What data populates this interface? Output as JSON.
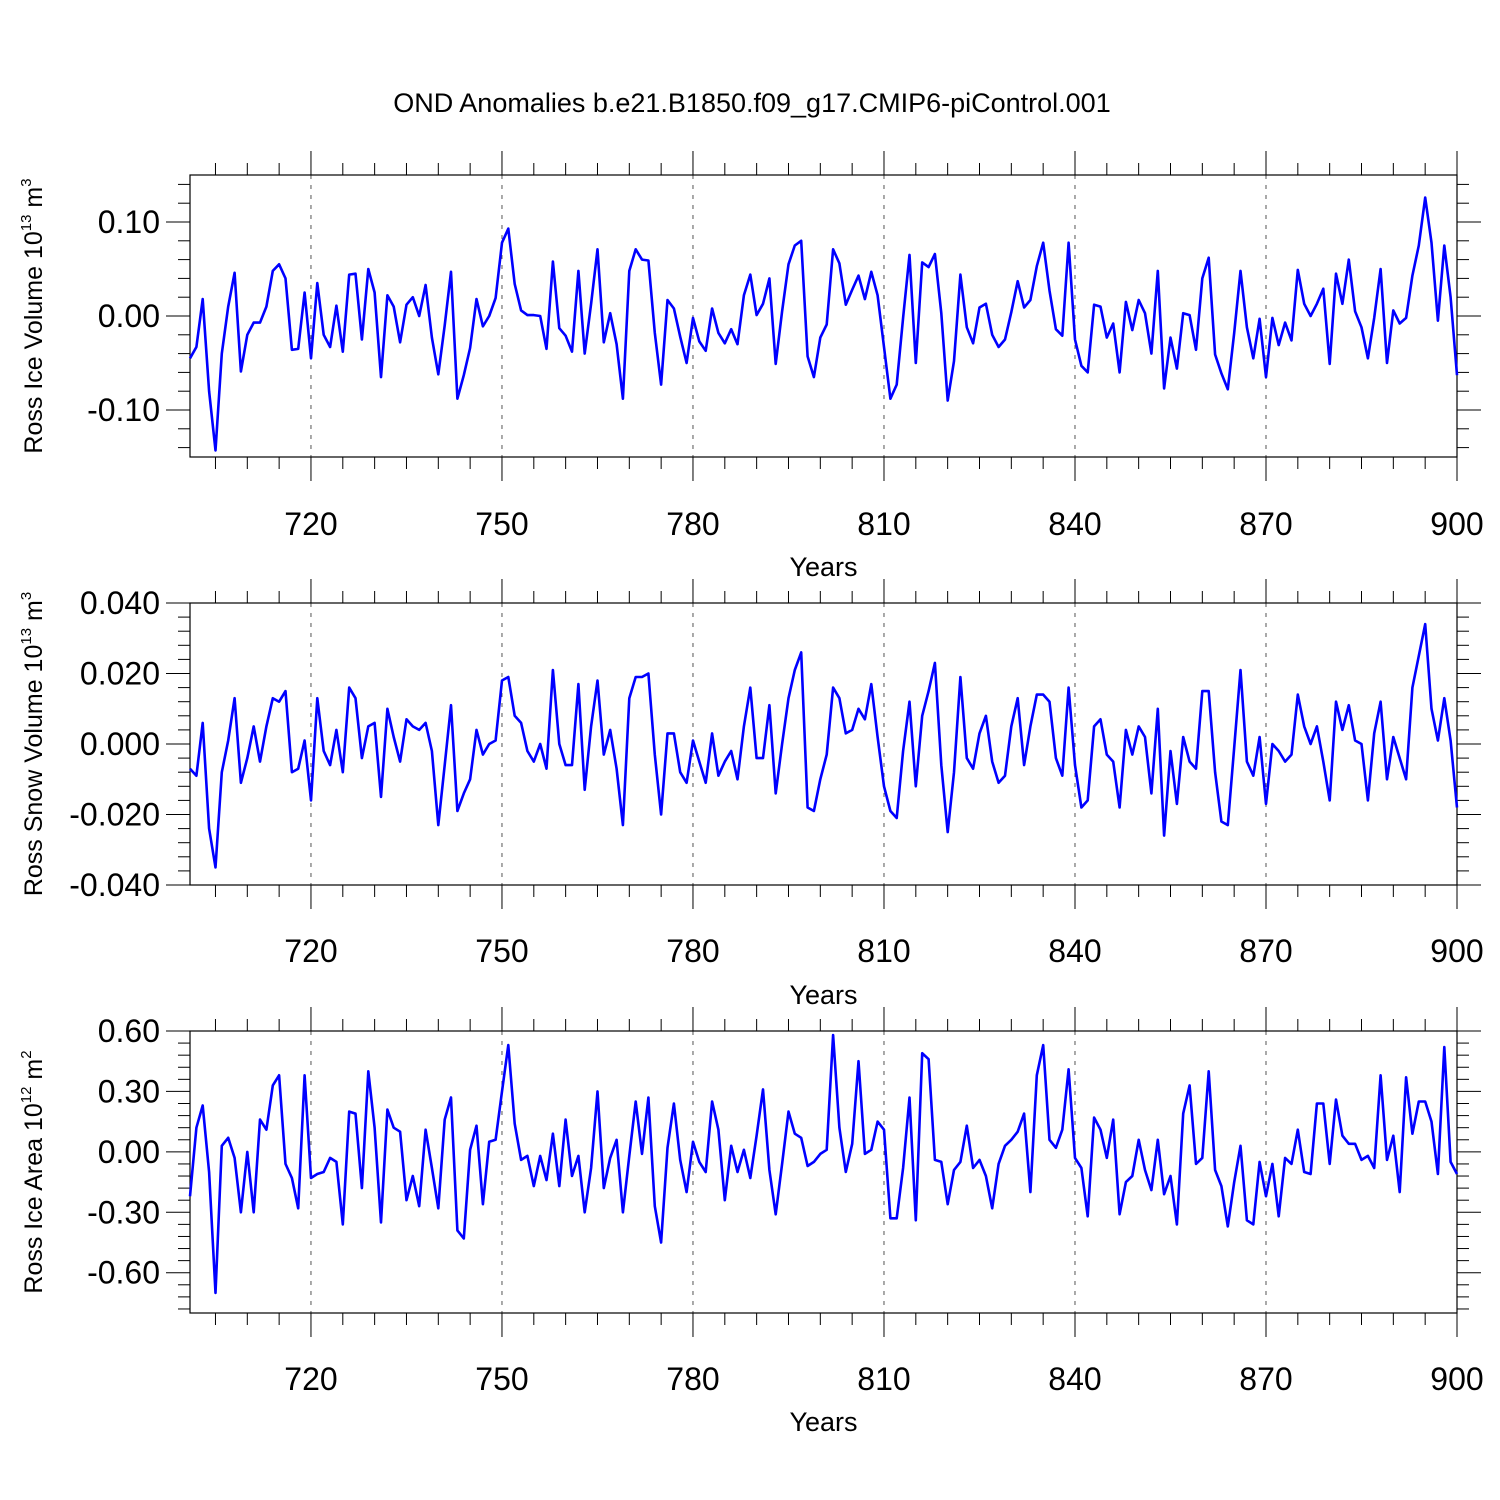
{
  "figure": {
    "title": "OND Anomalies b.e21.B1850.f09_g17.CMIP6-piControl.001"
  },
  "chart_data": [
    {
      "type": "line",
      "xlabel": "Years",
      "ylabel": {
        "main": "Ross Ice Volume 10",
        "sup": "13",
        "unit": " m",
        "unit_sup": "3"
      },
      "xlim": [
        701,
        900
      ],
      "ylim": [
        -0.15,
        0.15
      ],
      "xticks": [
        720,
        750,
        780,
        810,
        840,
        870,
        900
      ],
      "xtick_labels": [
        "720",
        "750",
        "780",
        "810",
        "840",
        "870",
        "900"
      ],
      "yticks": [
        0.1,
        0.0,
        -0.1
      ],
      "ytick_labels": [
        "0.10",
        "0.00",
        "-0.10"
      ],
      "grid": "vertical dashed at major x ticks",
      "line_color": "#0000ff",
      "x_start": 701,
      "values": [
        -0.045,
        -0.033,
        0.018,
        -0.08,
        -0.143,
        -0.04,
        0.01,
        0.046,
        -0.059,
        -0.02,
        -0.007,
        -0.007,
        0.01,
        0.048,
        0.055,
        0.04,
        -0.036,
        -0.035,
        0.025,
        -0.045,
        0.035,
        -0.02,
        -0.033,
        0.011,
        -0.038,
        0.044,
        0.045,
        -0.025,
        0.05,
        0.025,
        -0.065,
        0.022,
        0.01,
        -0.028,
        0.012,
        0.02,
        0.0,
        0.033,
        -0.023,
        -0.062,
        -0.01,
        0.047,
        -0.088,
        -0.063,
        -0.034,
        0.018,
        -0.011,
        0.0,
        0.019,
        0.078,
        0.093,
        0.034,
        0.006,
        0.001,
        0.001,
        0.0,
        -0.035,
        0.058,
        -0.013,
        -0.021,
        -0.038,
        0.048,
        -0.04,
        0.013,
        0.071,
        -0.028,
        0.003,
        -0.03,
        -0.088,
        0.048,
        0.071,
        0.06,
        0.059,
        -0.018,
        -0.073,
        0.017,
        0.008,
        -0.022,
        -0.05,
        -0.002,
        -0.027,
        -0.037,
        0.008,
        -0.018,
        -0.029,
        -0.014,
        -0.03,
        0.022,
        0.044,
        0.001,
        0.013,
        0.04,
        -0.051,
        0.005,
        0.055,
        0.075,
        0.08,
        -0.043,
        -0.065,
        -0.023,
        -0.009,
        0.071,
        0.056,
        0.012,
        0.028,
        0.043,
        0.018,
        0.047,
        0.022,
        -0.033,
        -0.088,
        -0.073,
        -0.002,
        0.065,
        -0.05,
        0.057,
        0.052,
        0.066,
        0.003,
        -0.09,
        -0.048,
        0.044,
        -0.012,
        -0.029,
        0.009,
        0.013,
        -0.02,
        -0.033,
        -0.025,
        0.004,
        0.037,
        0.009,
        0.017,
        0.053,
        0.078,
        0.027,
        -0.014,
        -0.021,
        0.078,
        -0.025,
        -0.053,
        -0.06,
        0.012,
        0.01,
        -0.023,
        -0.008,
        -0.06,
        0.015,
        -0.015,
        0.017,
        0.003,
        -0.04,
        0.048,
        -0.077,
        -0.023,
        -0.056,
        0.003,
        0.001,
        -0.036,
        0.04,
        0.062,
        -0.041,
        -0.061,
        -0.078,
        -0.018,
        0.048,
        -0.012,
        -0.045,
        -0.003,
        -0.065,
        -0.002,
        -0.031,
        -0.007,
        -0.026,
        0.049,
        0.013,
        0.0,
        0.013,
        0.029,
        -0.051,
        0.045,
        0.013,
        0.06,
        0.005,
        -0.012,
        -0.045,
        -0.002,
        0.05,
        -0.05,
        0.006,
        -0.008,
        -0.002,
        0.043,
        0.075,
        0.126,
        0.078,
        -0.005,
        0.075,
        0.02,
        -0.063
      ]
    },
    {
      "type": "line",
      "xlabel": "Years",
      "ylabel": {
        "main": "Ross Snow Volume 10",
        "sup": "13",
        "unit": " m",
        "unit_sup": "3"
      },
      "xlim": [
        701,
        900
      ],
      "ylim": [
        -0.04,
        0.04
      ],
      "xticks": [
        720,
        750,
        780,
        810,
        840,
        870,
        900
      ],
      "xtick_labels": [
        "720",
        "750",
        "780",
        "810",
        "840",
        "870",
        "900"
      ],
      "yticks": [
        0.04,
        0.02,
        0.0,
        -0.02,
        -0.04
      ],
      "ytick_labels": [
        "0.040",
        "0.020",
        "0.000",
        "-0.020",
        "-0.040"
      ],
      "grid": "vertical dashed at major x ticks",
      "line_color": "#0000ff",
      "x_start": 701,
      "values": [
        -0.007,
        -0.009,
        0.006,
        -0.024,
        -0.035,
        -0.008,
        0.001,
        0.013,
        -0.011,
        -0.004,
        0.005,
        -0.005,
        0.005,
        0.013,
        0.012,
        0.015,
        -0.008,
        -0.007,
        0.001,
        -0.016,
        0.013,
        -0.002,
        -0.006,
        0.004,
        -0.008,
        0.016,
        0.013,
        -0.004,
        0.005,
        0.006,
        -0.015,
        0.01,
        0.002,
        -0.005,
        0.007,
        0.005,
        0.004,
        0.006,
        -0.002,
        -0.023,
        -0.006,
        0.011,
        -0.019,
        -0.014,
        -0.01,
        0.004,
        -0.003,
        0.0,
        0.001,
        0.018,
        0.019,
        0.008,
        0.006,
        -0.002,
        -0.005,
        0.0,
        -0.007,
        0.021,
        0.0,
        -0.006,
        -0.006,
        0.017,
        -0.013,
        0.005,
        0.018,
        -0.003,
        0.004,
        -0.007,
        -0.023,
        0.013,
        0.019,
        0.019,
        0.02,
        -0.003,
        -0.02,
        0.003,
        0.003,
        -0.008,
        -0.011,
        0.001,
        -0.005,
        -0.011,
        0.003,
        -0.009,
        -0.005,
        -0.002,
        -0.01,
        0.005,
        0.016,
        -0.004,
        -0.004,
        0.011,
        -0.014,
        0.0,
        0.013,
        0.021,
        0.026,
        -0.018,
        -0.019,
        -0.01,
        -0.003,
        0.016,
        0.013,
        0.003,
        0.004,
        0.01,
        0.007,
        0.017,
        0.002,
        -0.012,
        -0.019,
        -0.021,
        -0.002,
        0.012,
        -0.012,
        0.008,
        0.015,
        0.023,
        -0.006,
        -0.025,
        -0.008,
        0.019,
        -0.004,
        -0.007,
        0.003,
        0.008,
        -0.005,
        -0.011,
        -0.009,
        0.005,
        0.013,
        -0.006,
        0.005,
        0.014,
        0.014,
        0.012,
        -0.004,
        -0.009,
        0.016,
        -0.006,
        -0.018,
        -0.016,
        0.005,
        0.007,
        -0.003,
        -0.005,
        -0.018,
        0.004,
        -0.003,
        0.005,
        0.002,
        -0.014,
        0.01,
        -0.026,
        -0.002,
        -0.017,
        0.002,
        -0.005,
        -0.007,
        0.015,
        0.015,
        -0.008,
        -0.022,
        -0.023,
        -0.001,
        0.021,
        -0.005,
        -0.009,
        0.002,
        -0.017,
        0.0,
        -0.002,
        -0.005,
        -0.003,
        0.014,
        0.005,
        0.0,
        0.005,
        -0.005,
        -0.016,
        0.012,
        0.004,
        0.011,
        0.001,
        0.0,
        -0.016,
        0.003,
        0.012,
        -0.01,
        0.002,
        -0.004,
        -0.01,
        0.016,
        0.025,
        0.034,
        0.01,
        0.001,
        0.013,
        0.001,
        -0.018
      ]
    },
    {
      "type": "line",
      "xlabel": "Years",
      "ylabel": {
        "main": "Ross Ice Area 10",
        "sup": "12",
        "unit": " m",
        "unit_sup": "2"
      },
      "xlim": [
        701,
        900
      ],
      "ylim": [
        -0.8,
        0.6
      ],
      "xticks": [
        720,
        750,
        780,
        810,
        840,
        870,
        900
      ],
      "xtick_labels": [
        "720",
        "750",
        "780",
        "810",
        "840",
        "870",
        "900"
      ],
      "yticks": [
        0.6,
        0.3,
        0.0,
        -0.3,
        -0.6
      ],
      "ytick_labels": [
        "0.60",
        "0.30",
        "0.00",
        "-0.30",
        "-0.60"
      ],
      "grid": "vertical dashed at major x ticks",
      "line_color": "#0000ff",
      "x_start": 701,
      "values": [
        -0.22,
        0.12,
        0.23,
        -0.1,
        -0.7,
        0.03,
        0.07,
        -0.03,
        -0.3,
        0.0,
        -0.3,
        0.16,
        0.11,
        0.33,
        0.38,
        -0.06,
        -0.13,
        -0.28,
        0.38,
        -0.13,
        -0.11,
        -0.1,
        -0.03,
        -0.05,
        -0.36,
        0.2,
        0.19,
        -0.18,
        0.4,
        0.12,
        -0.35,
        0.21,
        0.12,
        0.1,
        -0.24,
        -0.12,
        -0.27,
        0.11,
        -0.08,
        -0.28,
        0.16,
        0.27,
        -0.39,
        -0.43,
        0.01,
        0.13,
        -0.26,
        0.05,
        0.06,
        0.3,
        0.53,
        0.14,
        -0.04,
        -0.02,
        -0.17,
        -0.02,
        -0.14,
        0.09,
        -0.17,
        0.16,
        -0.12,
        -0.02,
        -0.3,
        -0.08,
        0.3,
        -0.18,
        -0.03,
        0.06,
        -0.3,
        -0.02,
        0.25,
        -0.01,
        0.27,
        -0.27,
        -0.45,
        0.02,
        0.24,
        -0.04,
        -0.2,
        0.05,
        -0.05,
        -0.1,
        0.25,
        0.11,
        -0.24,
        0.03,
        -0.1,
        0.01,
        -0.13,
        0.08,
        0.31,
        -0.09,
        -0.31,
        -0.06,
        0.2,
        0.09,
        0.07,
        -0.07,
        -0.05,
        -0.01,
        0.01,
        0.58,
        0.12,
        -0.1,
        0.04,
        0.45,
        -0.01,
        0.01,
        0.15,
        0.11,
        -0.33,
        -0.33,
        -0.08,
        0.27,
        -0.34,
        0.49,
        0.46,
        -0.04,
        -0.05,
        -0.26,
        -0.09,
        -0.05,
        0.13,
        -0.08,
        -0.04,
        -0.12,
        -0.28,
        -0.06,
        0.03,
        0.06,
        0.1,
        0.19,
        -0.2,
        0.38,
        0.53,
        0.06,
        0.02,
        0.11,
        0.41,
        -0.03,
        -0.08,
        -0.32,
        0.17,
        0.11,
        -0.03,
        0.16,
        -0.31,
        -0.15,
        -0.12,
        0.06,
        -0.09,
        -0.19,
        0.06,
        -0.21,
        -0.12,
        -0.36,
        0.19,
        0.33,
        -0.06,
        -0.03,
        0.4,
        -0.09,
        -0.17,
        -0.37,
        -0.15,
        0.03,
        -0.34,
        -0.36,
        -0.05,
        -0.22,
        -0.06,
        -0.32,
        -0.03,
        -0.06,
        0.11,
        -0.1,
        -0.11,
        0.24,
        0.24,
        -0.06,
        0.26,
        0.08,
        0.04,
        0.04,
        -0.04,
        -0.02,
        -0.08,
        0.38,
        -0.04,
        0.08,
        -0.2,
        0.37,
        0.09,
        0.25,
        0.25,
        0.15,
        -0.11,
        0.52,
        -0.05,
        -0.11
      ]
    }
  ]
}
